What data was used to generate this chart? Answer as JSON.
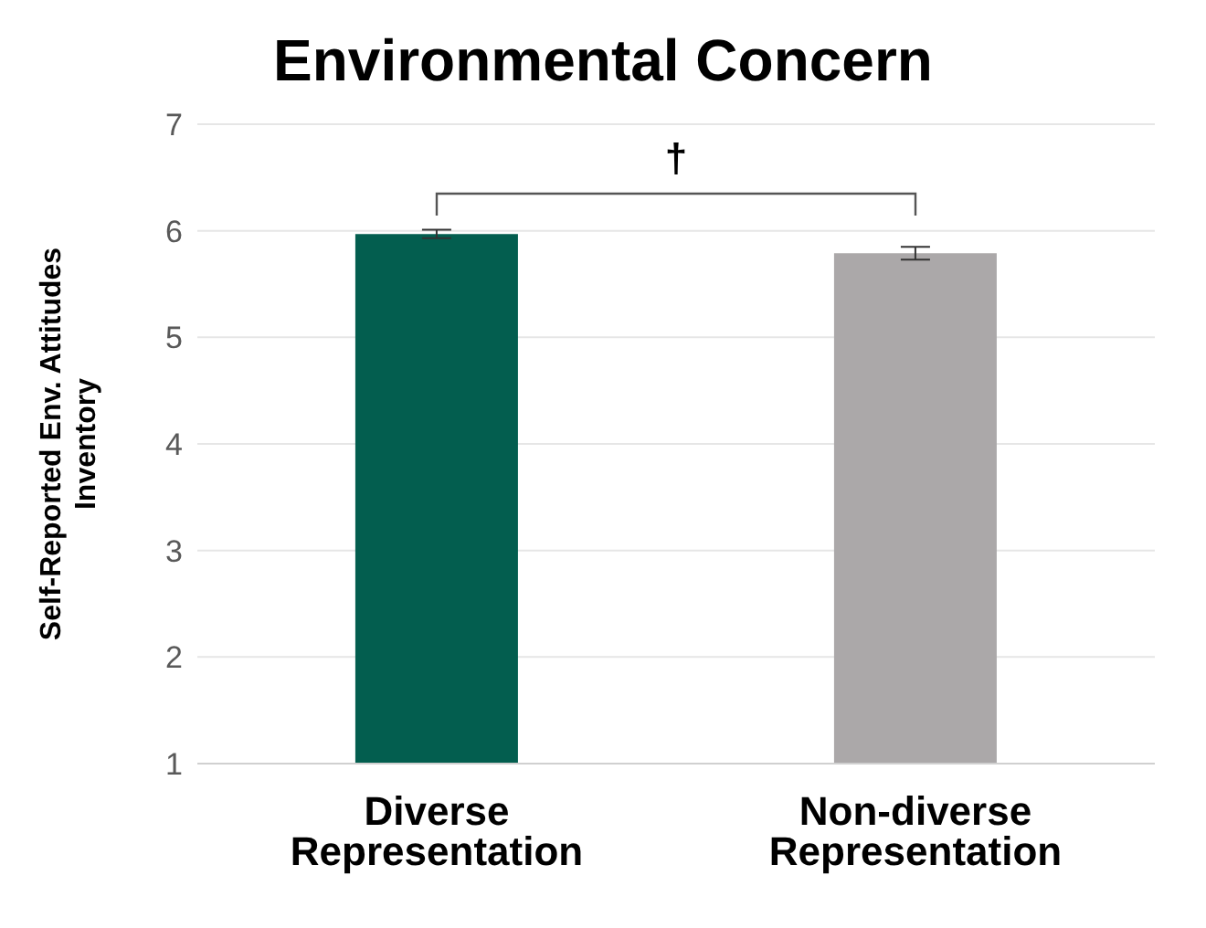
{
  "chart_data": {
    "type": "bar",
    "title": "Environmental Concern",
    "ylabel": "Self-Reported Env. Attitudes Inventory",
    "categories": [
      "Diverse Representation",
      "Non-diverse Representation"
    ],
    "values": [
      5.97,
      5.79
    ],
    "colors": [
      "#035e4f",
      "#aba8a9"
    ],
    "errors": [
      0.04,
      0.06
    ],
    "ylim": [
      1,
      7
    ],
    "yticks": [
      1,
      2,
      3,
      4,
      5,
      6,
      7
    ],
    "grid": "y",
    "annotations": [
      "†"
    ]
  }
}
